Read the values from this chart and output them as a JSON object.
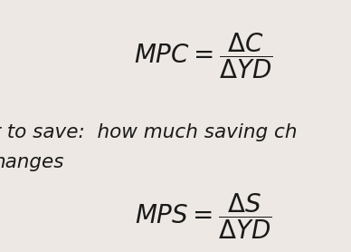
{
  "background_color": "#ede8e3",
  "text_color": "#1a1a1a",
  "mpc_formula": "$\\mathit{MPC} = \\dfrac{\\Delta C}{\\Delta YD}$",
  "mps_formula": "$\\mathit{MPS} = \\dfrac{\\Delta S}{\\Delta YD}$",
  "middle_text_line1": "r to save:  how much saving ch",
  "middle_text_line2": "hanges",
  "formula_fontsize": 20,
  "text_fontsize": 15.5,
  "fig_width": 3.88,
  "fig_height": 2.78,
  "dpi": 100
}
